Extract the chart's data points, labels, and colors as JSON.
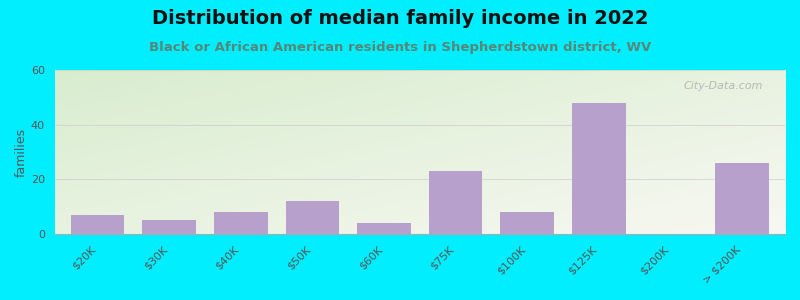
{
  "categories": [
    "$20K",
    "$30K",
    "$40K",
    "$50K",
    "$60K",
    "$75K",
    "$100K",
    "$125K",
    "$200K",
    "> $200K"
  ],
  "values": [
    7,
    5,
    8,
    12,
    4,
    23,
    8,
    48,
    0,
    26
  ],
  "bar_color": "#b8a0cc",
  "title": "Distribution of median family income in 2022",
  "subtitle": "Black or African American residents in Shepherdstown district, WV",
  "ylabel": "families",
  "ylim": [
    0,
    60
  ],
  "yticks": [
    0,
    20,
    40,
    60
  ],
  "bg_outer": "#00eeff",
  "bg_plot_left_top": "#d8edcf",
  "bg_plot_right_bottom": "#f5f5ee",
  "title_fontsize": 14,
  "subtitle_fontsize": 9.5,
  "subtitle_color": "#558877",
  "watermark": "City-Data.com",
  "xlabel_fontsize": 8,
  "ylabel_fontsize": 9
}
